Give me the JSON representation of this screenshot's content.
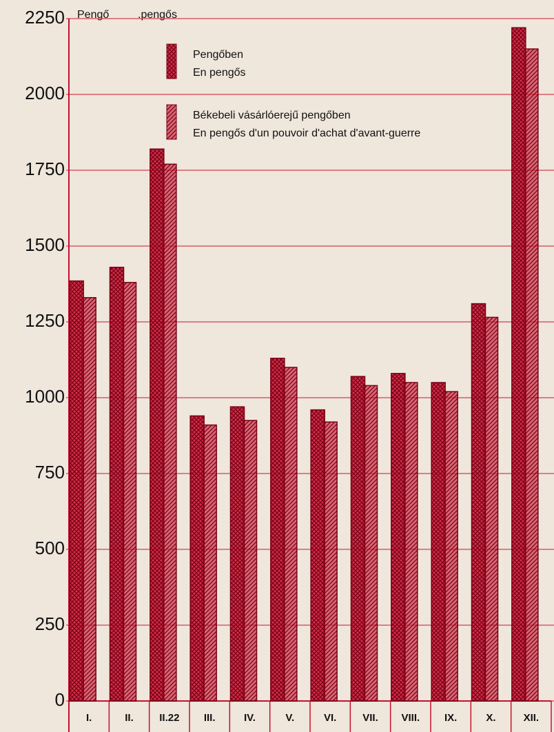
{
  "chart_data": {
    "type": "bar",
    "y_label_hu": "Pengő",
    "y_label_fr": ".pengős",
    "categories": [
      "I.",
      "II.",
      "II.22",
      "III.",
      "IV.",
      "V.",
      "VI.",
      "VII.",
      "VIII.",
      "IX.",
      "X.",
      "XII."
    ],
    "series": [
      {
        "name": "Pengőben",
        "name_fr": "En pengős",
        "color": "#c8102e",
        "pattern": "crosshatch",
        "values": [
          1385,
          1430,
          1820,
          940,
          970,
          1130,
          960,
          1070,
          1080,
          1050,
          1310,
          2220
        ]
      },
      {
        "name": "Békebeli vásárlóerejű pengőben",
        "name_fr": "En pengős d'un pouvoir d'achat d'avant-guerre",
        "color": "#c8102e",
        "pattern": "diagonal",
        "values": [
          1330,
          1380,
          1770,
          910,
          925,
          1100,
          920,
          1040,
          1050,
          1020,
          1265,
          2150
        ]
      }
    ],
    "ylim": [
      0,
      2250
    ],
    "yticks": [
      0,
      250,
      500,
      750,
      1000,
      1250,
      1500,
      1750,
      2000,
      2250
    ],
    "grid": true
  }
}
